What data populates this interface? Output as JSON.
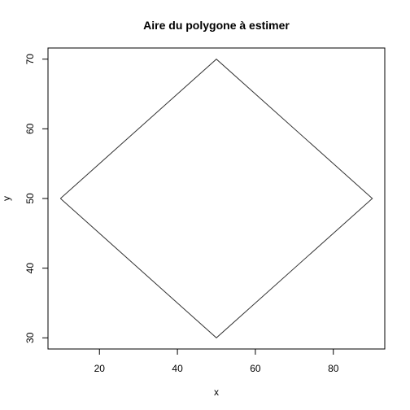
{
  "chart_data": {
    "type": "line",
    "title": "Aire du polygone à estimer",
    "xlabel": "x",
    "ylabel": "y",
    "xlim": [
      6.8,
      93.2
    ],
    "ylim": [
      28.4,
      71.6
    ],
    "xticks": [
      20,
      40,
      60,
      80
    ],
    "yticks": [
      30,
      40,
      50,
      60,
      70
    ],
    "grid": false,
    "series": [
      {
        "x": [
          10,
          50,
          90,
          50,
          10
        ],
        "y": [
          50,
          70,
          50,
          30,
          50
        ]
      }
    ]
  }
}
